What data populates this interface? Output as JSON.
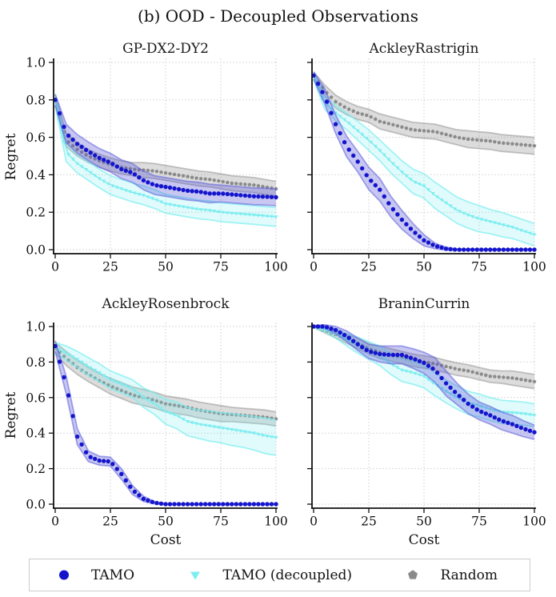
{
  "figure": {
    "title": "(b) OOD - Decoupled Observations"
  },
  "axes": {
    "xlabel": "Cost",
    "ylabel": "Regret",
    "xticks": [
      0,
      25,
      50,
      75,
      100
    ],
    "yticks": [
      0.0,
      0.2,
      0.4,
      0.6,
      0.8,
      1.0
    ],
    "xlim": [
      0,
      100
    ],
    "ylim": [
      0,
      1
    ],
    "grid": true
  },
  "palette": {
    "grid": "#cfcfcf",
    "axis": "#111111",
    "text": "#111111",
    "tamo": {
      "marker": "#1414cc",
      "band": "rgba(80,80,215,0.32)",
      "edge": "rgba(95,95,220,0.55)"
    },
    "decoupled": {
      "marker": "#7deef0",
      "band": "rgba(120,238,240,0.22)",
      "edge": "rgba(125,238,240,0.70)",
      "line": "rgba(110,232,235,0.95)"
    },
    "random": {
      "marker": "#8a8a8a",
      "band": "rgba(130,130,130,0.28)",
      "edge": "rgba(130,130,130,0.45)"
    }
  },
  "legend": {
    "position": "bottom",
    "items": [
      {
        "label": "TAMO",
        "marker": "circle",
        "color": "#1414cc"
      },
      {
        "label": "TAMO (decoupled)",
        "marker": "triangle-down",
        "color": "#7deef0"
      },
      {
        "label": "Random",
        "marker": "pentagon",
        "color": "#8a8a8a"
      }
    ]
  },
  "chart_data": [
    {
      "type": "line",
      "title": "GP-DX2-DY2",
      "x": [
        0,
        5,
        10,
        15,
        20,
        25,
        30,
        35,
        40,
        45,
        50,
        55,
        60,
        65,
        70,
        75,
        80,
        85,
        90,
        95,
        100
      ],
      "series": [
        {
          "name": "TAMO",
          "key": "tamo",
          "values": [
            0.8,
            0.62,
            0.565,
            0.525,
            0.49,
            0.465,
            0.43,
            0.41,
            0.37,
            0.345,
            0.335,
            0.325,
            0.315,
            0.31,
            0.3,
            0.3,
            0.295,
            0.29,
            0.285,
            0.283,
            0.28
          ],
          "band": [
            0.03,
            0.05,
            0.05,
            0.05,
            0.05,
            0.05,
            0.05,
            0.05,
            0.05,
            0.05,
            0.05,
            0.05,
            0.05,
            0.05,
            0.05,
            0.045,
            0.045,
            0.045,
            0.045,
            0.045,
            0.045
          ]
        },
        {
          "name": "TAMO (decoupled)",
          "key": "decoupled",
          "values": [
            0.8,
            0.52,
            0.46,
            0.42,
            0.38,
            0.345,
            0.325,
            0.305,
            0.29,
            0.27,
            0.245,
            0.235,
            0.225,
            0.215,
            0.21,
            0.2,
            0.195,
            0.19,
            0.185,
            0.18,
            0.175
          ],
          "band": [
            0.03,
            0.05,
            0.05,
            0.05,
            0.05,
            0.05,
            0.05,
            0.05,
            0.05,
            0.05,
            0.05,
            0.05,
            0.05,
            0.05,
            0.05,
            0.05,
            0.05,
            0.05,
            0.05,
            0.05,
            0.05
          ]
        },
        {
          "name": "Random",
          "key": "random",
          "values": [
            0.8,
            0.585,
            0.535,
            0.5,
            0.475,
            0.455,
            0.44,
            0.43,
            0.425,
            0.42,
            0.41,
            0.4,
            0.39,
            0.38,
            0.375,
            0.365,
            0.355,
            0.35,
            0.345,
            0.335,
            0.325
          ],
          "band": [
            0.03,
            0.035,
            0.035,
            0.035,
            0.035,
            0.035,
            0.035,
            0.035,
            0.04,
            0.04,
            0.04,
            0.04,
            0.04,
            0.04,
            0.04,
            0.04,
            0.04,
            0.04,
            0.04,
            0.04,
            0.04
          ]
        }
      ]
    },
    {
      "type": "line",
      "title": "AckleyRastrigin",
      "x": [
        0,
        5,
        10,
        15,
        20,
        25,
        30,
        35,
        40,
        45,
        50,
        55,
        60,
        65,
        70,
        75,
        80,
        85,
        90,
        95,
        100
      ],
      "series": [
        {
          "name": "TAMO",
          "key": "tamo",
          "values": [
            0.93,
            0.82,
            0.67,
            0.55,
            0.47,
            0.38,
            0.32,
            0.23,
            0.16,
            0.1,
            0.05,
            0.02,
            0.005,
            0.0,
            0.0,
            0.0,
            0.0,
            0.0,
            0.0,
            0.0,
            0.0
          ],
          "band": [
            0.02,
            0.04,
            0.05,
            0.055,
            0.055,
            0.06,
            0.06,
            0.055,
            0.05,
            0.04,
            0.03,
            0.015,
            0.008,
            0.004,
            0.004,
            0.004,
            0.004,
            0.004,
            0.004,
            0.004,
            0.004
          ]
        },
        {
          "name": "TAMO (decoupled)",
          "key": "decoupled",
          "values": [
            0.93,
            0.785,
            0.73,
            0.685,
            0.635,
            0.585,
            0.53,
            0.47,
            0.415,
            0.365,
            0.34,
            0.29,
            0.25,
            0.21,
            0.185,
            0.165,
            0.15,
            0.135,
            0.12,
            0.1,
            0.08
          ],
          "band": [
            0.02,
            0.035,
            0.04,
            0.045,
            0.05,
            0.055,
            0.055,
            0.06,
            0.06,
            0.065,
            0.065,
            0.07,
            0.07,
            0.07,
            0.07,
            0.07,
            0.065,
            0.065,
            0.06,
            0.06,
            0.06
          ]
        },
        {
          "name": "Random",
          "key": "random",
          "values": [
            0.93,
            0.85,
            0.79,
            0.755,
            0.73,
            0.715,
            0.685,
            0.67,
            0.655,
            0.64,
            0.635,
            0.63,
            0.615,
            0.6,
            0.59,
            0.585,
            0.58,
            0.57,
            0.565,
            0.56,
            0.555
          ],
          "band": [
            0.02,
            0.03,
            0.035,
            0.035,
            0.035,
            0.035,
            0.04,
            0.04,
            0.04,
            0.04,
            0.04,
            0.04,
            0.04,
            0.04,
            0.045,
            0.045,
            0.045,
            0.045,
            0.045,
            0.045,
            0.045
          ]
        }
      ]
    },
    {
      "type": "line",
      "title": "AckleyRosenbrock",
      "x": [
        0,
        5,
        10,
        15,
        20,
        25,
        30,
        35,
        40,
        45,
        50,
        55,
        60,
        65,
        70,
        75,
        80,
        85,
        90,
        95,
        100
      ],
      "series": [
        {
          "name": "TAMO",
          "key": "tamo",
          "values": [
            0.89,
            0.67,
            0.38,
            0.27,
            0.245,
            0.24,
            0.17,
            0.08,
            0.03,
            0.008,
            0.0,
            0.0,
            0.0,
            0.0,
            0.0,
            0.0,
            0.0,
            0.0,
            0.0,
            0.0,
            0.0
          ],
          "band": [
            0.03,
            0.05,
            0.045,
            0.03,
            0.025,
            0.025,
            0.03,
            0.025,
            0.015,
            0.006,
            0.003,
            0.003,
            0.003,
            0.003,
            0.003,
            0.003,
            0.003,
            0.003,
            0.003,
            0.003,
            0.003
          ]
        },
        {
          "name": "TAMO (decoupled)",
          "key": "decoupled",
          "values": [
            0.88,
            0.85,
            0.815,
            0.775,
            0.74,
            0.7,
            0.675,
            0.65,
            0.6,
            0.565,
            0.52,
            0.5,
            0.465,
            0.45,
            0.44,
            0.43,
            0.42,
            0.41,
            0.4,
            0.385,
            0.375
          ],
          "band": [
            0.03,
            0.04,
            0.045,
            0.05,
            0.05,
            0.05,
            0.05,
            0.05,
            0.055,
            0.06,
            0.07,
            0.075,
            0.08,
            0.08,
            0.085,
            0.085,
            0.09,
            0.09,
            0.095,
            0.1,
            0.1
          ]
        },
        {
          "name": "Random",
          "key": "random",
          "values": [
            0.88,
            0.82,
            0.77,
            0.73,
            0.695,
            0.665,
            0.64,
            0.615,
            0.6,
            0.585,
            0.565,
            0.555,
            0.545,
            0.53,
            0.52,
            0.51,
            0.505,
            0.5,
            0.495,
            0.49,
            0.48
          ],
          "band": [
            0.03,
            0.04,
            0.04,
            0.04,
            0.04,
            0.045,
            0.045,
            0.045,
            0.045,
            0.045,
            0.045,
            0.045,
            0.045,
            0.045,
            0.045,
            0.045,
            0.04,
            0.04,
            0.04,
            0.04,
            0.04
          ]
        }
      ]
    },
    {
      "type": "line",
      "title": "BraninCurrin",
      "x": [
        0,
        5,
        10,
        15,
        20,
        25,
        30,
        35,
        40,
        45,
        50,
        55,
        60,
        65,
        70,
        75,
        80,
        85,
        90,
        95,
        100
      ],
      "series": [
        {
          "name": "TAMO",
          "key": "tamo",
          "values": [
            1.0,
            1.0,
            0.98,
            0.945,
            0.9,
            0.86,
            0.845,
            0.84,
            0.84,
            0.82,
            0.795,
            0.755,
            0.68,
            0.62,
            0.565,
            0.525,
            0.5,
            0.47,
            0.45,
            0.425,
            0.405
          ],
          "band": [
            0.005,
            0.01,
            0.02,
            0.03,
            0.035,
            0.04,
            0.045,
            0.05,
            0.05,
            0.055,
            0.06,
            0.07,
            0.07,
            0.06,
            0.055,
            0.05,
            0.05,
            0.05,
            0.05,
            0.045,
            0.04
          ]
        },
        {
          "name": "TAMO (decoupled)",
          "key": "decoupled",
          "values": [
            1.0,
            0.985,
            0.96,
            0.925,
            0.895,
            0.865,
            0.835,
            0.79,
            0.755,
            0.74,
            0.72,
            0.675,
            0.635,
            0.6,
            0.57,
            0.555,
            0.535,
            0.52,
            0.515,
            0.51,
            0.5
          ],
          "band": [
            0.005,
            0.015,
            0.025,
            0.035,
            0.045,
            0.05,
            0.055,
            0.06,
            0.065,
            0.065,
            0.065,
            0.065,
            0.065,
            0.065,
            0.065,
            0.065,
            0.065,
            0.065,
            0.065,
            0.065,
            0.065
          ]
        },
        {
          "name": "Random",
          "key": "random",
          "values": [
            1.0,
            0.975,
            0.955,
            0.93,
            0.905,
            0.875,
            0.855,
            0.84,
            0.825,
            0.81,
            0.8,
            0.79,
            0.775,
            0.76,
            0.75,
            0.735,
            0.72,
            0.715,
            0.71,
            0.7,
            0.69
          ],
          "band": [
            0.005,
            0.01,
            0.02,
            0.025,
            0.03,
            0.03,
            0.035,
            0.035,
            0.035,
            0.035,
            0.035,
            0.035,
            0.035,
            0.035,
            0.035,
            0.035,
            0.035,
            0.035,
            0.04,
            0.04,
            0.04
          ]
        }
      ]
    }
  ]
}
